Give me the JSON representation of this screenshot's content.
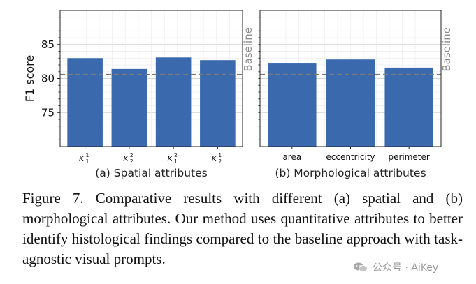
{
  "chart_data": [
    {
      "type": "bar",
      "ylabel": "F1 score",
      "ylim": [
        70,
        90
      ],
      "yticks": [
        75,
        80,
        85
      ],
      "grid": true,
      "categories": [
        {
          "base": "K",
          "sup": "1",
          "sub": "1"
        },
        {
          "base": "K",
          "sup": "2",
          "sub": "2"
        },
        {
          "base": "K",
          "sup": "2",
          "sub": "1"
        },
        {
          "base": "K",
          "sup": "1",
          "sub": "2"
        }
      ],
      "values": [
        83.0,
        81.4,
        83.1,
        82.7
      ],
      "baseline": {
        "value": 80.6,
        "label": "Baseline"
      },
      "subtitle": "(a) Spatial attributes",
      "bar_color": "#3a6aad"
    },
    {
      "type": "bar",
      "ylim": [
        70,
        90
      ],
      "grid": true,
      "categories": [
        "area",
        "eccentricity",
        "perimeter"
      ],
      "values": [
        82.2,
        82.8,
        81.6
      ],
      "baseline": {
        "value": 80.6,
        "label": "Baseline"
      },
      "subtitle": "(b) Morphological attributes",
      "bar_color": "#3a6aad"
    }
  ],
  "caption": "Figure 7. Comparative results with different (a) spatial and (b) morphological attributes. Our method uses quantitative attributes to better identify histological findings compared to the baseline approach with task-agnostic visual prompts.",
  "watermark": {
    "text": "公众号 · AiKey",
    "icon": "wechat-icon"
  }
}
